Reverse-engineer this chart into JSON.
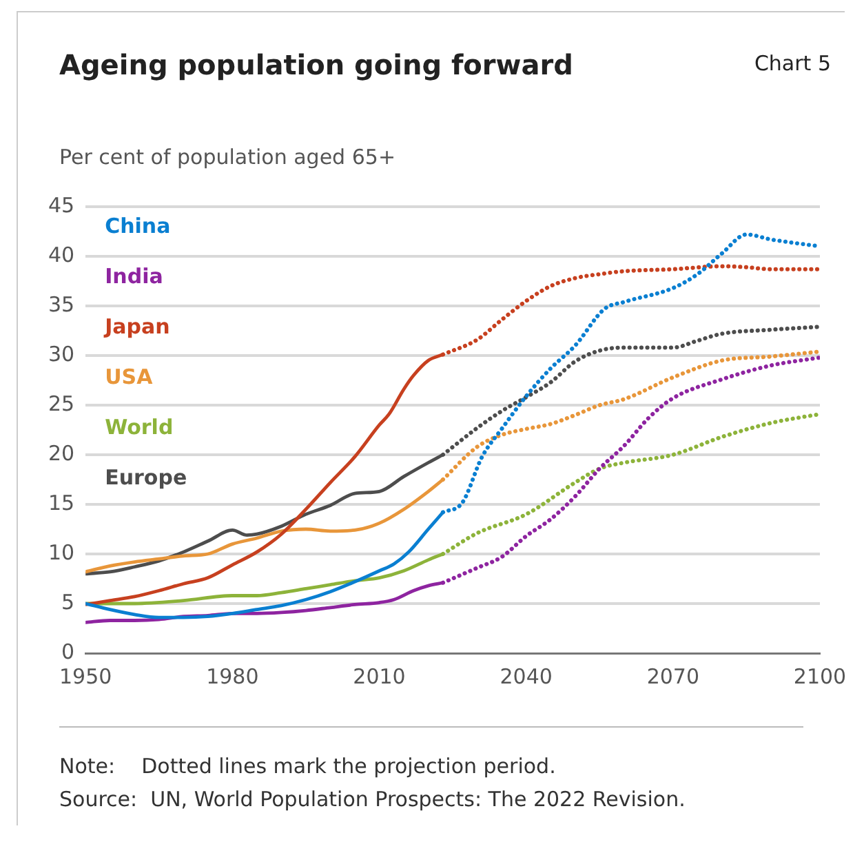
{
  "chart_data": {
    "type": "line",
    "title": "Ageing population going forward",
    "ylabel": "Per cent of population aged 65+",
    "annotations": [
      "Chart 5",
      "Note:    Dotted lines mark the projection period.",
      "Source:  UN, World Population Prospects: The 2022 Revision."
    ],
    "xlim": [
      1950,
      2100
    ],
    "xticks": [
      1950,
      1980,
      2010,
      2040,
      2070,
      2100
    ],
    "ylim": [
      0,
      45
    ],
    "yticks": [
      0,
      5,
      10,
      15,
      20,
      25,
      30,
      35,
      40,
      45
    ],
    "grid": "y",
    "legend": "top left",
    "marker": "none",
    "line_style": "solid",
    "series": [
      {
        "name": "China",
        "color": "#0a7fd1",
        "x": [
          1950,
          1955,
          1960,
          1965,
          1970,
          1975,
          1980,
          1985,
          1990,
          1995,
          2000,
          2005,
          2010,
          2013,
          2016,
          2020,
          2023
        ],
        "values": [
          5.0,
          4.4,
          3.9,
          3.6,
          3.6,
          3.7,
          4.0,
          4.4,
          4.8,
          5.4,
          6.2,
          7.2,
          8.3,
          9.0,
          10.2,
          12.5,
          14.2
        ]
      },
      {
        "name": "India",
        "color": "#8e24a0",
        "x": [
          1950,
          1955,
          1960,
          1965,
          1970,
          1975,
          1980,
          1985,
          1990,
          1995,
          2000,
          2005,
          2010,
          2013,
          2017,
          2020,
          2023
        ],
        "values": [
          3.1,
          3.3,
          3.3,
          3.4,
          3.7,
          3.8,
          4.0,
          4.0,
          4.1,
          4.3,
          4.6,
          4.9,
          5.1,
          5.4,
          6.3,
          6.8,
          7.1
        ]
      },
      {
        "name": "Japan",
        "color": "#c7401f",
        "x": [
          1950,
          1955,
          1960,
          1965,
          1970,
          1975,
          1980,
          1985,
          1990,
          1995,
          2000,
          2005,
          2010,
          2012,
          2015,
          2017,
          2020,
          2023
        ],
        "values": [
          4.9,
          5.3,
          5.7,
          6.3,
          7.0,
          7.6,
          8.9,
          10.2,
          12.0,
          14.5,
          17.2,
          19.8,
          23.0,
          24.1,
          26.6,
          28.0,
          29.5,
          30.1
        ]
      },
      {
        "name": "USA",
        "color": "#e8963a",
        "x": [
          1950,
          1955,
          1960,
          1965,
          1970,
          1975,
          1980,
          1985,
          1990,
          1995,
          2000,
          2005,
          2010,
          2015,
          2020,
          2023
        ],
        "values": [
          8.2,
          8.8,
          9.2,
          9.5,
          9.8,
          10.0,
          11.0,
          11.6,
          12.3,
          12.5,
          12.3,
          12.4,
          13.1,
          14.5,
          16.3,
          17.5
        ]
      },
      {
        "name": "World",
        "color": "#8db33a",
        "x": [
          1950,
          1960,
          1970,
          1980,
          1985,
          1990,
          1995,
          2000,
          2005,
          2010,
          2015,
          2020,
          2023
        ],
        "values": [
          5.0,
          5.0,
          5.3,
          5.8,
          5.8,
          6.1,
          6.5,
          6.9,
          7.3,
          7.6,
          8.3,
          9.4,
          10.0
        ]
      },
      {
        "name": "Europe",
        "color": "#4d4d4d",
        "x": [
          1950,
          1955,
          1960,
          1965,
          1970,
          1975,
          1980,
          1983,
          1985,
          1990,
          1995,
          2000,
          2005,
          2010,
          2015,
          2020,
          2023
        ],
        "values": [
          8.0,
          8.2,
          8.7,
          9.3,
          10.2,
          11.3,
          12.4,
          11.9,
          12.0,
          12.8,
          14.0,
          14.9,
          16.1,
          16.3,
          17.8,
          19.2,
          20.0
        ]
      },
      {
        "color": "#0a7fd1",
        "line_style": "dotted",
        "x": [
          2023,
          2027,
          2031,
          2035,
          2040,
          2045,
          2050,
          2056,
          2060,
          2070,
          2075,
          2080,
          2085,
          2090,
          2100
        ],
        "values": [
          14.2,
          15.2,
          19.8,
          22.6,
          25.9,
          28.7,
          31.0,
          34.7,
          35.4,
          36.8,
          38.2,
          40.3,
          42.2,
          41.7,
          41.0
        ]
      },
      {
        "color": "#8e24a0",
        "line_style": "dotted",
        "x": [
          2023,
          2030,
          2035,
          2040,
          2045,
          2050,
          2055,
          2060,
          2065,
          2070,
          2080,
          2090,
          2100
        ],
        "values": [
          7.1,
          8.6,
          9.7,
          11.8,
          13.5,
          15.8,
          18.6,
          20.9,
          23.7,
          25.7,
          27.6,
          29.0,
          29.8
        ]
      },
      {
        "color": "#c7401f",
        "line_style": "dotted",
        "x": [
          2023,
          2030,
          2035,
          2040,
          2045,
          2050,
          2055,
          2060,
          2070,
          2080,
          2085,
          2090,
          2100
        ],
        "values": [
          30.1,
          31.6,
          33.6,
          35.5,
          37.0,
          37.8,
          38.2,
          38.5,
          38.7,
          39.0,
          38.9,
          38.7,
          38.7
        ]
      },
      {
        "color": "#e8963a",
        "line_style": "dotted",
        "x": [
          2023,
          2030,
          2035,
          2040,
          2045,
          2050,
          2055,
          2060,
          2070,
          2080,
          2090,
          2100
        ],
        "values": [
          17.5,
          20.8,
          22.0,
          22.6,
          23.1,
          24.0,
          25.0,
          25.6,
          27.8,
          29.5,
          29.9,
          30.4
        ]
      },
      {
        "color": "#8db33a",
        "line_style": "dotted",
        "x": [
          2023,
          2030,
          2040,
          2050,
          2055,
          2060,
          2070,
          2080,
          2090,
          2100
        ],
        "values": [
          10.0,
          12.1,
          14.0,
          17.2,
          18.6,
          19.2,
          20.0,
          21.8,
          23.2,
          24.1
        ]
      },
      {
        "color": "#4d4d4d",
        "line_style": "dotted",
        "x": [
          2023,
          2030,
          2035,
          2040,
          2045,
          2050,
          2055,
          2060,
          2070,
          2075,
          2080,
          2090,
          2100
        ],
        "values": [
          20.0,
          22.7,
          24.4,
          25.8,
          27.3,
          29.4,
          30.5,
          30.8,
          30.8,
          31.5,
          32.2,
          32.6,
          32.9
        ]
      }
    ]
  }
}
